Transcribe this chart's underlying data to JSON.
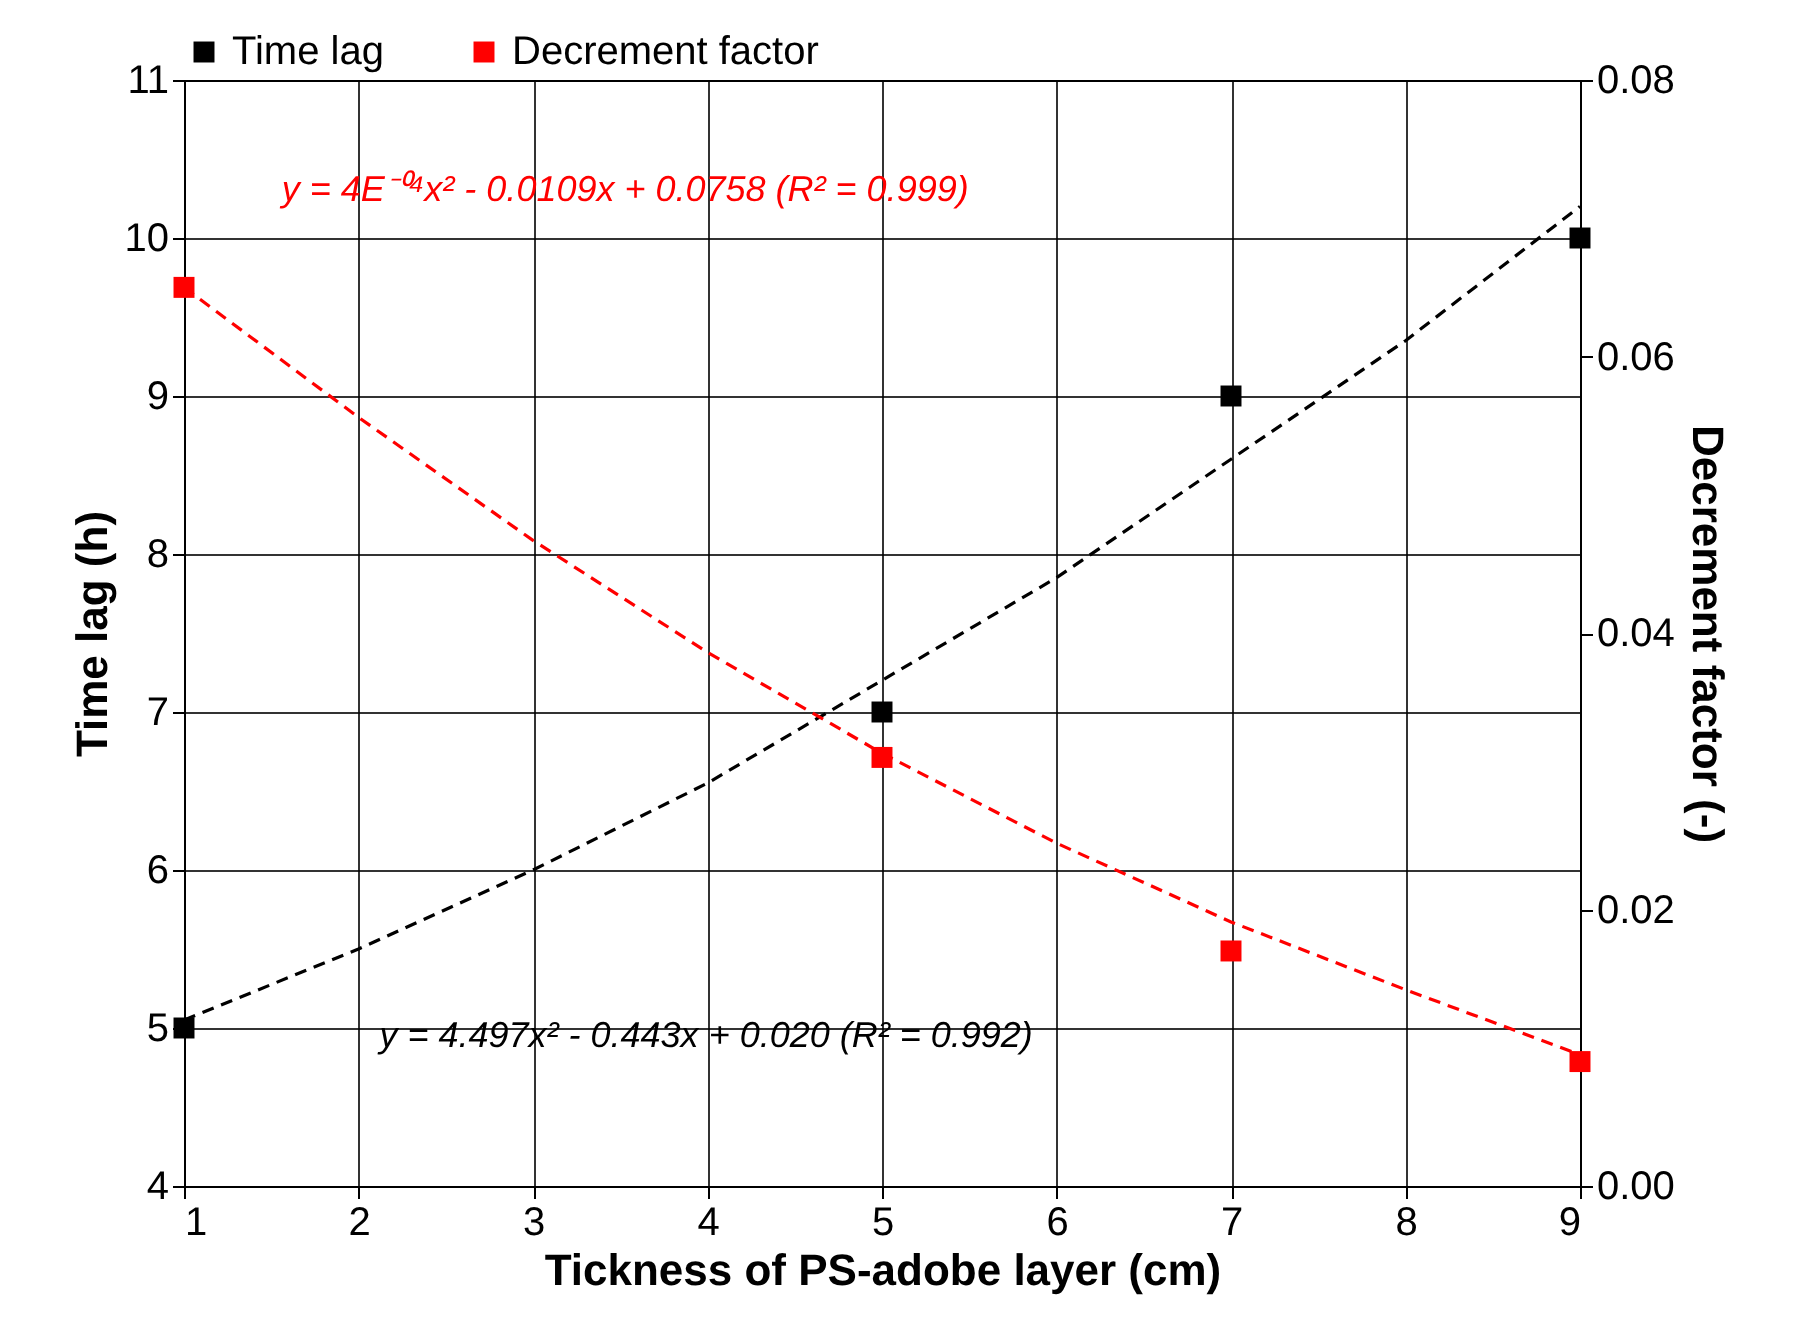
{
  "chart_data": {
    "type": "scatter",
    "xlabel": "Tickness of PS-adobe layer (cm)",
    "ylabel": "Time lag (h)",
    "y2label": "Decrement factor (-)",
    "xlim": [
      1,
      9
    ],
    "xticks": [
      1,
      2,
      3,
      4,
      5,
      6,
      7,
      8,
      9
    ],
    "ylim": [
      4,
      11
    ],
    "yticks": [
      4,
      5,
      6,
      7,
      8,
      9,
      10,
      11
    ],
    "y2lim": [
      0,
      0.08
    ],
    "y2ticks": [
      {
        "value": 0,
        "label": "0.00"
      },
      {
        "value": 0.02,
        "label": "0.02"
      },
      {
        "value": 0.04,
        "label": "0.04"
      },
      {
        "value": 0.06,
        "label": "0.06"
      },
      {
        "value": 0.08,
        "label": "0.08"
      }
    ],
    "grid": true,
    "legend": "top",
    "marker": "square",
    "series": [
      {
        "name": "Time lag",
        "color": "#000000",
        "x": [
          1,
          5,
          7,
          9
        ],
        "values": [
          5,
          7,
          9,
          10
        ]
      },
      {
        "name": "Decrement factor",
        "axis": "y2",
        "color": "#ff0000",
        "x": [
          1,
          5,
          7,
          9
        ],
        "values": [
          0.065,
          0.031,
          0.017,
          0.009
        ]
      },
      {
        "type": "line",
        "line_style": "dashed",
        "marker": "none",
        "color": "#000000",
        "x": [
          1,
          2,
          3,
          4,
          5,
          6,
          7,
          8,
          9
        ],
        "values": [
          5.05,
          5.5,
          6.0,
          6.55,
          7.2,
          7.85,
          8.6,
          9.35,
          10.2
        ]
      },
      {
        "type": "line",
        "line_style": "dashed",
        "marker": "none",
        "axis": "y2",
        "color": "#ff0000",
        "x": [
          1,
          2,
          3,
          4,
          5,
          6,
          7,
          8,
          9
        ],
        "values": [
          0.065,
          0.0556,
          0.0467,
          0.0386,
          0.0313,
          0.0248,
          0.0191,
          0.0142,
          0.0095
        ]
      }
    ],
    "annotations": [
      "y = 4E⁻⁰⁴x² - 0.0109x + 0.0758 (R² = 0.999)",
      "y = 4.497x² - 0.443x + 0.020 (R² = 0.992)"
    ]
  }
}
